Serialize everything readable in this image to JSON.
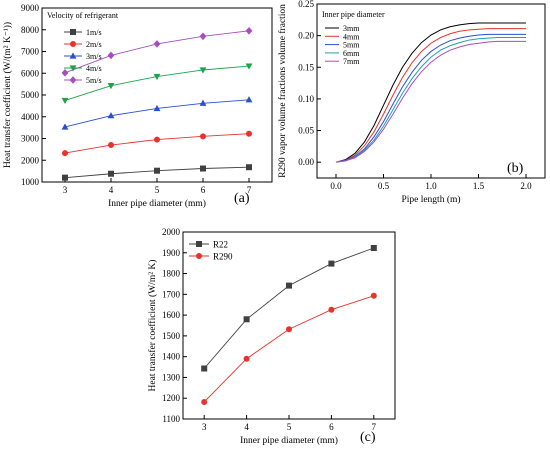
{
  "colors": {
    "axis": "#000000",
    "s1": "#404040",
    "s2": "#e8322b",
    "s3": "#2a4fd1",
    "s4": "#1ea34a",
    "s5": "#a64ec0",
    "cyan": "#20a0b0",
    "black": "#000000"
  },
  "chart_data": [
    {
      "id": "a",
      "type": "line",
      "panel_label": "(a)",
      "xlabel": "Inner pipe diameter (mm)",
      "ylabel": "Heat transfer coefficient (W/(m² K⁻¹))",
      "xlim": [
        2.5,
        7.5
      ],
      "ylim": [
        1000,
        9000
      ],
      "xticks": [
        3,
        4,
        5,
        6,
        7
      ],
      "yticks": [
        1000,
        2000,
        3000,
        4000,
        5000,
        6000,
        7000,
        8000,
        9000
      ],
      "legend_title": "Velocity of refrigerant",
      "legend_position": "top-left",
      "x": [
        3,
        4,
        5,
        6,
        7
      ],
      "series": [
        {
          "name": "1m/s",
          "marker": "square",
          "color_key": "s1",
          "values": [
            1200,
            1380,
            1520,
            1620,
            1680
          ]
        },
        {
          "name": "2m/s",
          "marker": "circle",
          "color_key": "s2",
          "values": [
            2330,
            2700,
            2950,
            3100,
            3220
          ]
        },
        {
          "name": "3m/s",
          "marker": "triangle-up",
          "color_key": "s3",
          "values": [
            3530,
            4050,
            4380,
            4620,
            4780
          ]
        },
        {
          "name": "4m/s",
          "marker": "triangle-down",
          "color_key": "s4",
          "values": [
            4750,
            5430,
            5850,
            6150,
            6330
          ]
        },
        {
          "name": "5m/s",
          "marker": "diamond",
          "color_key": "s5",
          "values": [
            6020,
            6820,
            7350,
            7700,
            7950
          ]
        }
      ]
    },
    {
      "id": "b",
      "type": "line",
      "panel_label": "(b)",
      "xlabel": "Pipe length (m)",
      "ylabel": "R290 vapor volume fractions volume fraction",
      "xlim": [
        -0.2,
        2.2
      ],
      "ylim": [
        -0.025,
        0.25
      ],
      "xticks": [
        0.0,
        0.5,
        1.0,
        1.5,
        2.0
      ],
      "yticks": [
        0.0,
        0.05,
        0.1,
        0.15,
        0.2,
        0.25
      ],
      "xtick_labels": [
        "0.0",
        "0.5",
        "1.0",
        "1.5",
        "2.0"
      ],
      "ytick_labels": [
        "0.00",
        "0.05",
        "0.10",
        "0.15",
        "0.20",
        "0.25"
      ],
      "legend_title": "Inner pipe diameter",
      "legend_position": "top-left",
      "x": [
        0.0,
        0.1,
        0.2,
        0.3,
        0.4,
        0.5,
        0.6,
        0.7,
        0.8,
        0.9,
        1.0,
        1.1,
        1.2,
        1.3,
        1.4,
        1.5,
        1.6,
        1.7,
        1.8,
        1.9,
        2.0
      ],
      "series": [
        {
          "name": "3mm",
          "color_key": "black",
          "values": [
            0.0,
            0.004,
            0.014,
            0.032,
            0.058,
            0.09,
            0.122,
            0.15,
            0.172,
            0.189,
            0.201,
            0.209,
            0.214,
            0.217,
            0.219,
            0.22,
            0.22,
            0.22,
            0.22,
            0.22,
            0.22
          ]
        },
        {
          "name": "4mm",
          "color_key": "s2",
          "values": [
            0.0,
            0.003,
            0.011,
            0.026,
            0.048,
            0.076,
            0.106,
            0.134,
            0.157,
            0.175,
            0.188,
            0.197,
            0.203,
            0.207,
            0.209,
            0.21,
            0.211,
            0.211,
            0.211,
            0.211,
            0.211
          ]
        },
        {
          "name": "5mm",
          "color_key": "s3",
          "values": [
            0.0,
            0.003,
            0.009,
            0.021,
            0.04,
            0.064,
            0.092,
            0.119,
            0.142,
            0.161,
            0.175,
            0.185,
            0.192,
            0.196,
            0.199,
            0.201,
            0.202,
            0.202,
            0.202,
            0.202,
            0.202
          ]
        },
        {
          "name": "6mm",
          "color_key": "cyan",
          "values": [
            0.0,
            0.002,
            0.008,
            0.019,
            0.035,
            0.057,
            0.083,
            0.109,
            0.132,
            0.151,
            0.166,
            0.177,
            0.184,
            0.189,
            0.193,
            0.195,
            0.196,
            0.197,
            0.197,
            0.197,
            0.197
          ]
        },
        {
          "name": "7mm",
          "color_key": "s5",
          "values": [
            0.0,
            0.002,
            0.007,
            0.017,
            0.032,
            0.052,
            0.076,
            0.101,
            0.124,
            0.143,
            0.158,
            0.169,
            0.177,
            0.182,
            0.186,
            0.188,
            0.19,
            0.191,
            0.191,
            0.191,
            0.191
          ]
        }
      ]
    },
    {
      "id": "c",
      "type": "line",
      "panel_label": "(c)",
      "xlabel": "Inner pipe diameter (mm)",
      "ylabel": "Heat transfer coefficient (W/m² K)",
      "xlim": [
        2.5,
        7.5
      ],
      "ylim": [
        1100,
        2000
      ],
      "xticks": [
        3,
        4,
        5,
        6,
        7
      ],
      "yticks": [
        1100,
        1200,
        1300,
        1400,
        1500,
        1600,
        1700,
        1800,
        1900,
        2000
      ],
      "legend_position": "top-left",
      "x": [
        3,
        4,
        5,
        6,
        7
      ],
      "series": [
        {
          "name": "R22",
          "marker": "square",
          "color_key": "s1",
          "values": [
            1343,
            1580,
            1742,
            1848,
            1923
          ]
        },
        {
          "name": "R290",
          "marker": "circle",
          "color_key": "s2",
          "values": [
            1182,
            1390,
            1532,
            1626,
            1693
          ]
        }
      ]
    }
  ]
}
